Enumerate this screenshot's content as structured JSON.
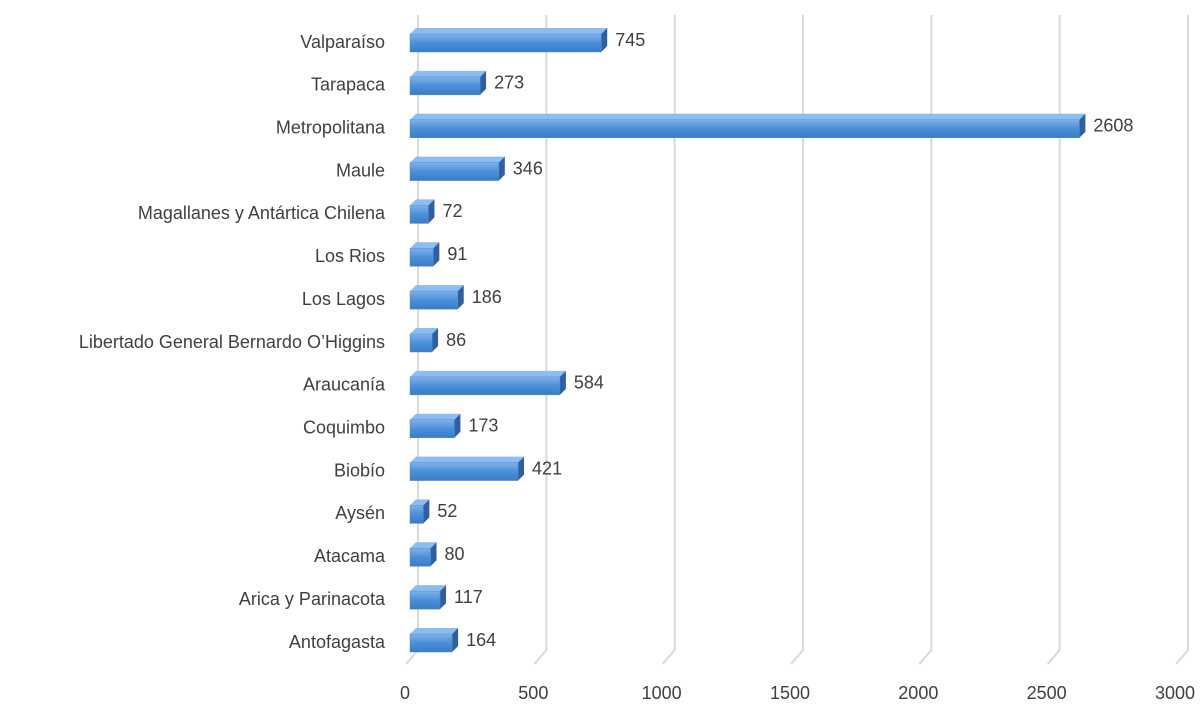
{
  "chart_data": {
    "type": "bar",
    "orientation": "horizontal",
    "categories": [
      "Valparaíso",
      "Tarapaca",
      "Metropolitana",
      "Maule",
      "Magallanes y Antártica Chilena",
      "Los Rios",
      "Los Lagos",
      "Libertado General Bernardo O’Higgins",
      "Araucanía",
      "Coquimbo",
      "Biobío",
      "Aysén",
      "Atacama",
      "Arica y Parinacota",
      "Antofagasta"
    ],
    "values": [
      745,
      273,
      2608,
      346,
      72,
      91,
      186,
      86,
      584,
      173,
      421,
      52,
      80,
      117,
      164
    ],
    "color": "#4a8fd8",
    "xlim": [
      0,
      3000
    ],
    "xticks": [
      0,
      500,
      1000,
      1500,
      2000,
      2500,
      3000
    ],
    "grid": true
  }
}
